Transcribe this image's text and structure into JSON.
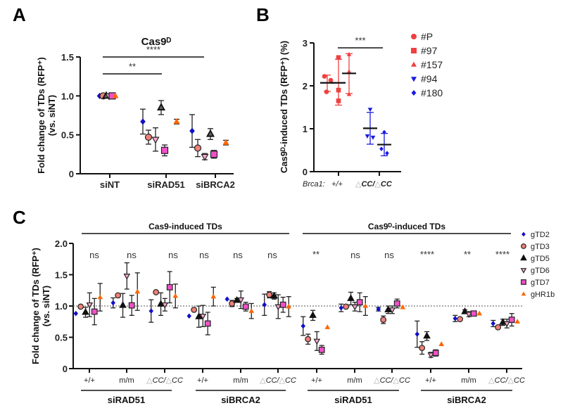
{
  "panels": {
    "A": {
      "letter": "A"
    },
    "B": {
      "letter": "B"
    },
    "C": {
      "letter": "C"
    }
  },
  "chart_data": [
    {
      "id": "A",
      "type": "scatter",
      "title": "Cas9ᴰ",
      "xlabel": "",
      "ylabel": "Fold change of TDs (RFP⁺)",
      "ylabel2": "(vs. siNT)",
      "ylim": [
        0,
        1.5
      ],
      "yticks": [
        0,
        0.5,
        1.0,
        1.5
      ],
      "ytick_labels": [
        "0",
        "0.5",
        "1.0",
        "1.5"
      ],
      "categories": [
        "siNT",
        "siRAD51",
        "siBRCA2"
      ],
      "series": [
        {
          "name": "gTD2",
          "marker": "diamond",
          "color": "#1010c8",
          "values": [
            1.0,
            0.67,
            0.55
          ],
          "err": [
            0,
            0.16,
            0.21
          ]
        },
        {
          "name": "gTD3",
          "marker": "circle",
          "color": "#f08078",
          "values": [
            1.0,
            0.47,
            0.33
          ],
          "err": [
            0,
            0.09,
            0.11
          ]
        },
        {
          "name": "gTD5",
          "marker": "triangle-up",
          "color": "#606060",
          "values": [
            1.0,
            0.85,
            0.51
          ],
          "err": [
            0,
            0.09,
            0.07
          ]
        },
        {
          "name": "gTD6",
          "marker": "triangle-down",
          "color": "#f8a8d0",
          "values": [
            1.0,
            0.44,
            0.22
          ],
          "err": [
            0,
            0.15,
            0.04
          ]
        },
        {
          "name": "gTD7",
          "marker": "square",
          "color": "#f050c8",
          "values": [
            1.0,
            0.3,
            0.25
          ],
          "err": [
            0,
            0.07,
            0.05
          ]
        },
        {
          "name": "gHR1b",
          "marker": "triangle-up-nostroke",
          "color": "#ff6600",
          "values": [
            1.0,
            0.67,
            0.4
          ],
          "err": [
            0,
            0.03,
            0.03
          ]
        }
      ],
      "significance": [
        {
          "from": "siNT",
          "to": "siRAD51",
          "label": "**"
        },
        {
          "from": "siNT",
          "to": "siBRCA2",
          "label": "****"
        }
      ]
    },
    {
      "id": "B",
      "type": "scatter",
      "title": "",
      "xlabel_prefix": "Brca1:",
      "ylabel": "Cas9ᴰ-induced TDs (RFP⁺) (%)",
      "ylim": [
        0,
        3
      ],
      "yticks": [
        0,
        1,
        2,
        3
      ],
      "ytick_labels": [
        "0",
        "1",
        "2",
        "3"
      ],
      "categories": [
        "+/+",
        "△CC/△CC"
      ],
      "groups": [
        {
          "category": "+/+",
          "line": "#P",
          "mean": 2.07,
          "sd_low": 1.87,
          "sd_high": 2.25,
          "points": [
            2.22,
            2.13,
            1.86
          ],
          "color": "#f04040",
          "marker": "circle"
        },
        {
          "category": "+/+",
          "line": "#97",
          "mean": 2.07,
          "sd_low": 1.55,
          "sd_high": 2.62,
          "points": [
            2.66,
            1.9,
            1.65
          ],
          "color": "#f04040",
          "marker": "square"
        },
        {
          "category": "+/+",
          "line": "#157",
          "mean": 2.29,
          "sd_low": 1.82,
          "sd_high": 2.75,
          "points": [
            2.73,
            2.33,
            1.8
          ],
          "color": "#f04040",
          "marker": "triangle-up"
        },
        {
          "category": "△CC/△CC",
          "line": "#94",
          "mean": 1.01,
          "sd_low": 0.64,
          "sd_high": 1.38,
          "points": [
            1.45,
            0.83,
            0.8
          ],
          "color": "#1a1ae0",
          "marker": "triangle-down"
        },
        {
          "category": "△CC/△CC",
          "line": "#180",
          "mean": 0.63,
          "sd_low": 0.37,
          "sd_high": 0.89,
          "points": [
            0.92,
            0.53,
            0.43
          ],
          "color": "#1a1ae0",
          "marker": "diamond"
        }
      ],
      "legend": [
        {
          "label": "#P",
          "marker": "circle",
          "color": "#f04040"
        },
        {
          "label": "#97",
          "marker": "square",
          "color": "#f04040"
        },
        {
          "label": "#157",
          "marker": "triangle-up",
          "color": "#f04040"
        },
        {
          "label": "#94",
          "marker": "triangle-down",
          "color": "#1a1ae0"
        },
        {
          "label": "#180",
          "marker": "diamond",
          "color": "#1a1ae0"
        }
      ],
      "legend_position": "right",
      "significance": [
        {
          "from": "+/+",
          "to": "△CC/△CC",
          "label": "***"
        }
      ]
    },
    {
      "id": "C",
      "type": "scatter",
      "title": "",
      "ylabel": "Fold change of TDs (RFP⁺)",
      "ylabel2": "(vs. siNT)",
      "ylim": [
        0,
        2.0
      ],
      "yticks": [
        0,
        0.5,
        1.0,
        1.5,
        2.0
      ],
      "ytick_labels": [
        "0",
        "0.5",
        "1.0",
        "1.5",
        "2.0"
      ],
      "reference_line": 1.0,
      "categories": [
        "+/+",
        "m/m",
        "△CC/△CC",
        "+/+",
        "m/m",
        "△CC/△CC",
        "+/+",
        "m/m",
        "△CC/△CC",
        "+/+",
        "m/m",
        "△CC/△CC"
      ],
      "group_labels": [
        "siRAD51",
        "siBRCA2",
        "siRAD51",
        "siBRCA2"
      ],
      "super_labels": [
        "Cas9-induced TDs",
        "Cas9ᴰ-induced TDs"
      ],
      "significance_labels": [
        "ns",
        "ns",
        "ns",
        "ns",
        "ns",
        "ns",
        "**",
        "ns",
        "ns",
        "****",
        "**",
        "****"
      ],
      "series": [
        {
          "name": "gTD2",
          "marker": "diamond",
          "color": "#1010c8",
          "values": [
            0.88,
            1.05,
            0.92,
            0.84,
            1.11,
            1.02,
            0.68,
            0.97,
            0.95,
            0.55,
            0.8,
            0.72
          ],
          "err": [
            0.0,
            0.08,
            0.18,
            0.0,
            0.0,
            0.17,
            0.15,
            0.06,
            0.03,
            0.21,
            0.05,
            0.05
          ]
        },
        {
          "name": "gTD3",
          "marker": "circle",
          "color": "#f08078",
          "values": [
            0.99,
            1.17,
            1.22,
            0.94,
            1.04,
            1.18,
            0.47,
            0.99,
            0.78,
            0.33,
            0.79,
            0.66
          ],
          "err": [
            0.0,
            0.0,
            0.0,
            0.0,
            0.05,
            0.05,
            0.08,
            0.0,
            0.06,
            0.1,
            0.0,
            0.0
          ]
        },
        {
          "name": "gTD5",
          "marker": "triangle-up",
          "color": "#111111",
          "values": [
            0.9,
            1.01,
            1.03,
            0.83,
            1.09,
            1.16,
            0.85,
            1.12,
            0.94,
            0.52,
            0.91,
            0.74
          ],
          "err": [
            0.08,
            0.19,
            0.18,
            0.17,
            0.03,
            0.05,
            0.08,
            0.1,
            0.06,
            0.07,
            0.03,
            0.05
          ]
        },
        {
          "name": "gTD6",
          "marker": "triangle-down",
          "color": "#f8a8d0",
          "values": [
            1.02,
            1.48,
            1.02,
            0.84,
            1.1,
            0.99,
            0.44,
            0.99,
            0.94,
            0.22,
            0.87,
            0.72
          ],
          "err": [
            0.19,
            0.21,
            0.1,
            0.17,
            0.14,
            0.19,
            0.15,
            0.07,
            0.06,
            0.04,
            0.04,
            0.07
          ]
        },
        {
          "name": "gTD7",
          "marker": "square",
          "color": "#f050c8",
          "values": [
            0.91,
            1.01,
            1.3,
            0.72,
            0.99,
            1.02,
            0.3,
            1.06,
            1.04,
            0.25,
            0.88,
            0.78
          ],
          "err": [
            0.21,
            0.16,
            0.25,
            0.18,
            0.07,
            0.12,
            0.07,
            0.15,
            0.07,
            0.05,
            0.03,
            0.1
          ]
        },
        {
          "name": "gHR1b",
          "marker": "triangle-up-nostroke",
          "color": "#ff6600",
          "values": [
            1.14,
            1.23,
            1.16,
            1.15,
            0.92,
            0.99,
            0.66,
            1.0,
            0.98,
            0.39,
            0.88,
            0.75
          ],
          "err": [
            0.22,
            0.3,
            0.19,
            0.15,
            0.12,
            0.16,
            0.0,
            0.15,
            0.0,
            0.0,
            0.0,
            0.0
          ]
        }
      ],
      "legend_position": "right"
    }
  ]
}
